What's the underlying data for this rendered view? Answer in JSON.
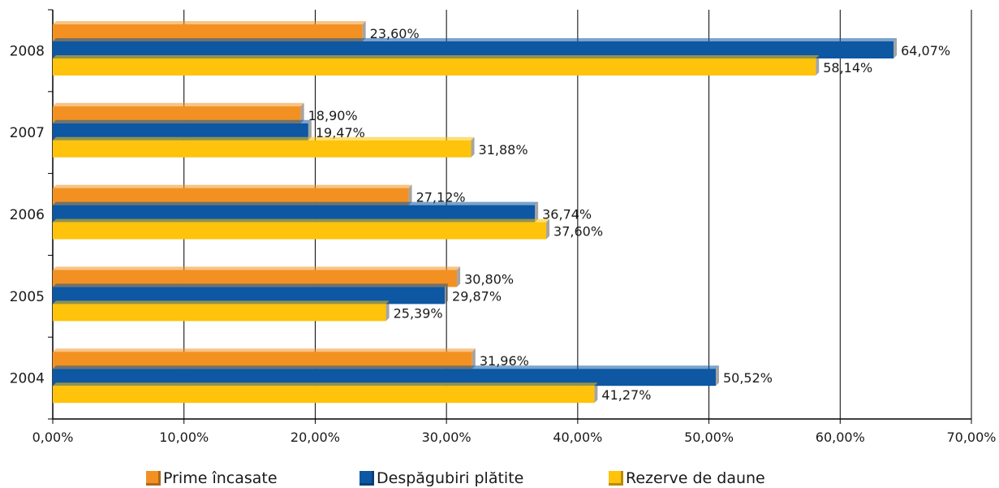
{
  "chart_data": {
    "type": "bar",
    "orientation": "horizontal",
    "categories": [
      "2008",
      "2007",
      "2006",
      "2005",
      "2004"
    ],
    "series": [
      {
        "name": "Prime încasate",
        "color": "#f29122",
        "values": [
          23.6,
          18.9,
          27.12,
          30.8,
          31.96
        ],
        "labels": [
          "23,60%",
          "18,90%",
          "27,12%",
          "30,80%",
          "31,96%"
        ]
      },
      {
        "name": "Despăgubiri plătite",
        "color": "#0d57a3",
        "values": [
          64.07,
          19.47,
          36.74,
          29.87,
          50.52
        ],
        "labels": [
          "64,07%",
          "19,47%",
          "36,74%",
          "29,87%",
          "50,52%"
        ]
      },
      {
        "name": "Rezerve de daune",
        "color": "#fec30a",
        "values": [
          58.14,
          31.88,
          37.6,
          25.39,
          41.27
        ],
        "labels": [
          "58,14%",
          "31,88%",
          "37,60%",
          "25,39%",
          "41,27%"
        ]
      }
    ],
    "x_ticks": [
      "0,00%",
      "10,00%",
      "20,00%",
      "30,00%",
      "40,00%",
      "50,00%",
      "60,00%",
      "70,00%"
    ],
    "xlim": [
      0,
      70
    ],
    "title": "",
    "xlabel": "",
    "ylabel": "",
    "grid": true,
    "legend_position": "bottom"
  }
}
